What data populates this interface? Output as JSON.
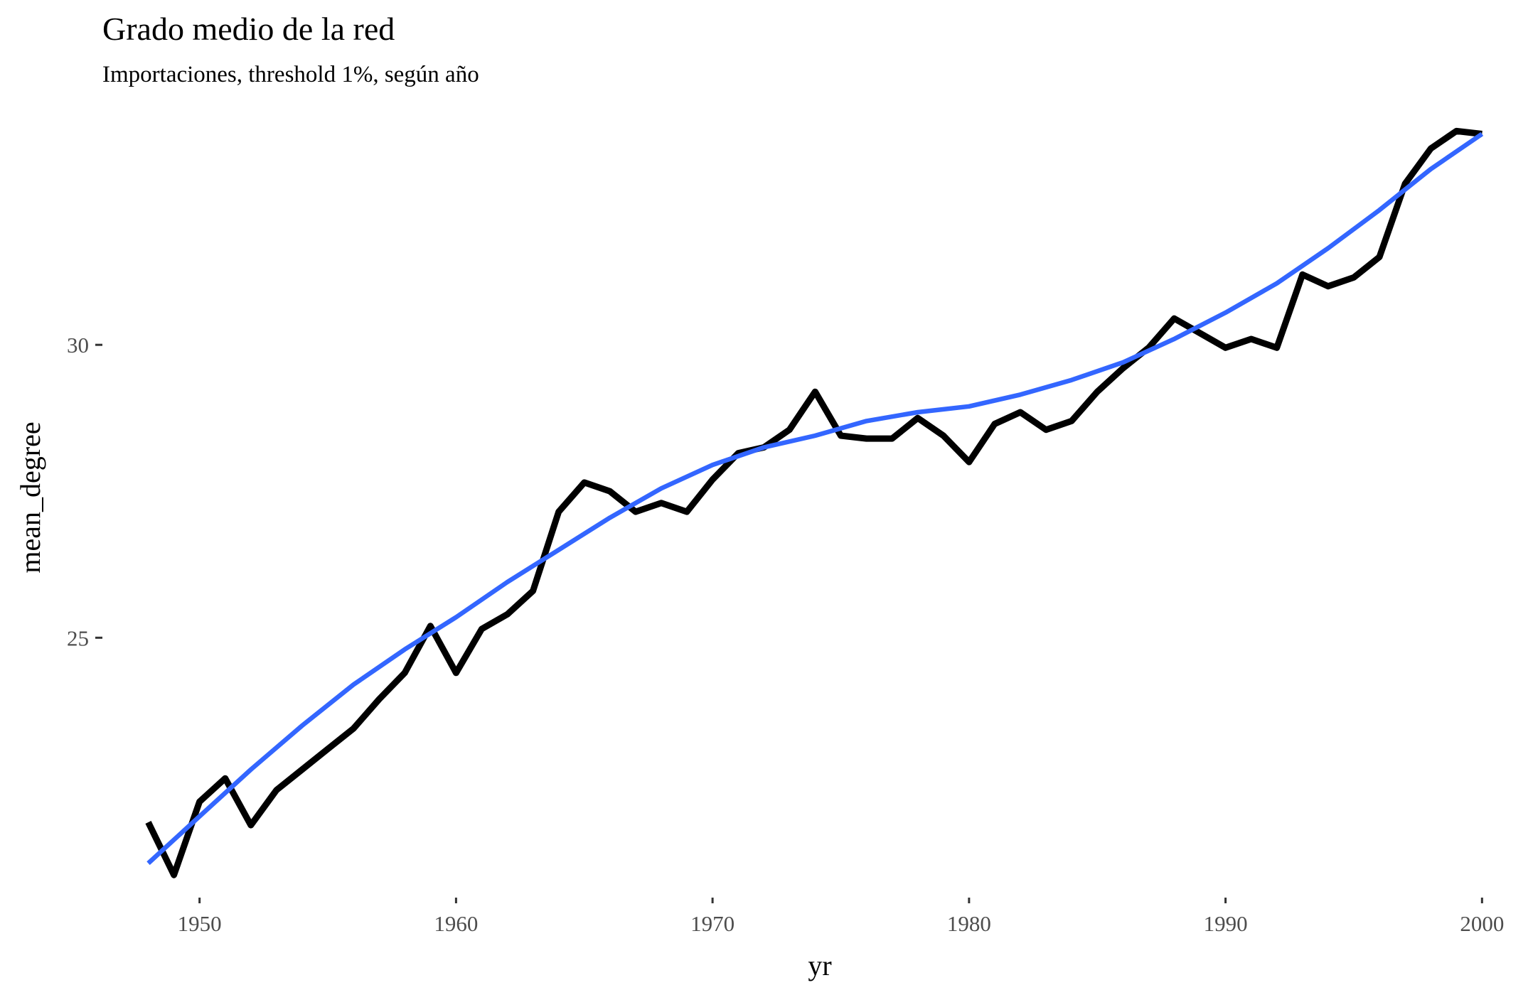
{
  "chart_data": {
    "type": "line",
    "title": "Grado medio de la red",
    "subtitle": "Importaciones, threshold 1%, según año",
    "xlabel": "yr",
    "ylabel": "mean_degree",
    "xlim": [
      1946.6,
      2001.1
    ],
    "ylim": [
      20.6,
      33.8
    ],
    "x_ticks": [
      1950,
      1960,
      1970,
      1980,
      1990,
      2000
    ],
    "y_ticks": [
      25,
      30
    ],
    "grid": false,
    "legend": "none",
    "series": [
      {
        "color": "#000000",
        "x": [
          1948,
          1949,
          1950,
          1951,
          1952,
          1953,
          1954,
          1955,
          1956,
          1957,
          1958,
          1959,
          1960,
          1961,
          1962,
          1963,
          1964,
          1965,
          1966,
          1967,
          1968,
          1969,
          1970,
          1971,
          1972,
          1973,
          1974,
          1975,
          1976,
          1977,
          1978,
          1979,
          1980,
          1981,
          1982,
          1983,
          1984,
          1985,
          1986,
          1987,
          1988,
          1989,
          1990,
          1991,
          1992,
          1993,
          1994,
          1995,
          1996,
          1997,
          1998,
          1999,
          2000
        ],
        "values": [
          21.85,
          20.95,
          22.2,
          22.6,
          21.8,
          22.4,
          22.75,
          23.1,
          23.45,
          23.95,
          24.4,
          25.2,
          24.4,
          25.15,
          25.4,
          25.8,
          27.15,
          27.65,
          27.5,
          27.15,
          27.3,
          27.15,
          27.7,
          28.15,
          28.25,
          28.55,
          29.2,
          28.45,
          28.4,
          28.4,
          28.75,
          28.45,
          28.0,
          28.65,
          28.85,
          28.55,
          28.7,
          29.2,
          29.6,
          29.95,
          30.45,
          30.2,
          29.95,
          30.1,
          29.95,
          31.2,
          31.0,
          31.15,
          31.5,
          32.75,
          33.35,
          33.65,
          33.6
        ]
      },
      {
        "color": "#3366FF",
        "x": [
          1948,
          1950,
          1952,
          1954,
          1956,
          1958,
          1960,
          1962,
          1964,
          1966,
          1968,
          1970,
          1972,
          1974,
          1976,
          1978,
          1980,
          1982,
          1984,
          1986,
          1988,
          1990,
          1992,
          1994,
          1996,
          1998,
          2000
        ],
        "values": [
          21.15,
          21.95,
          22.75,
          23.5,
          24.2,
          24.8,
          25.35,
          25.95,
          26.5,
          27.05,
          27.55,
          27.95,
          28.25,
          28.45,
          28.7,
          28.85,
          28.95,
          29.15,
          29.4,
          29.7,
          30.1,
          30.55,
          31.05,
          31.65,
          32.3,
          33.0,
          33.6
        ]
      }
    ]
  }
}
